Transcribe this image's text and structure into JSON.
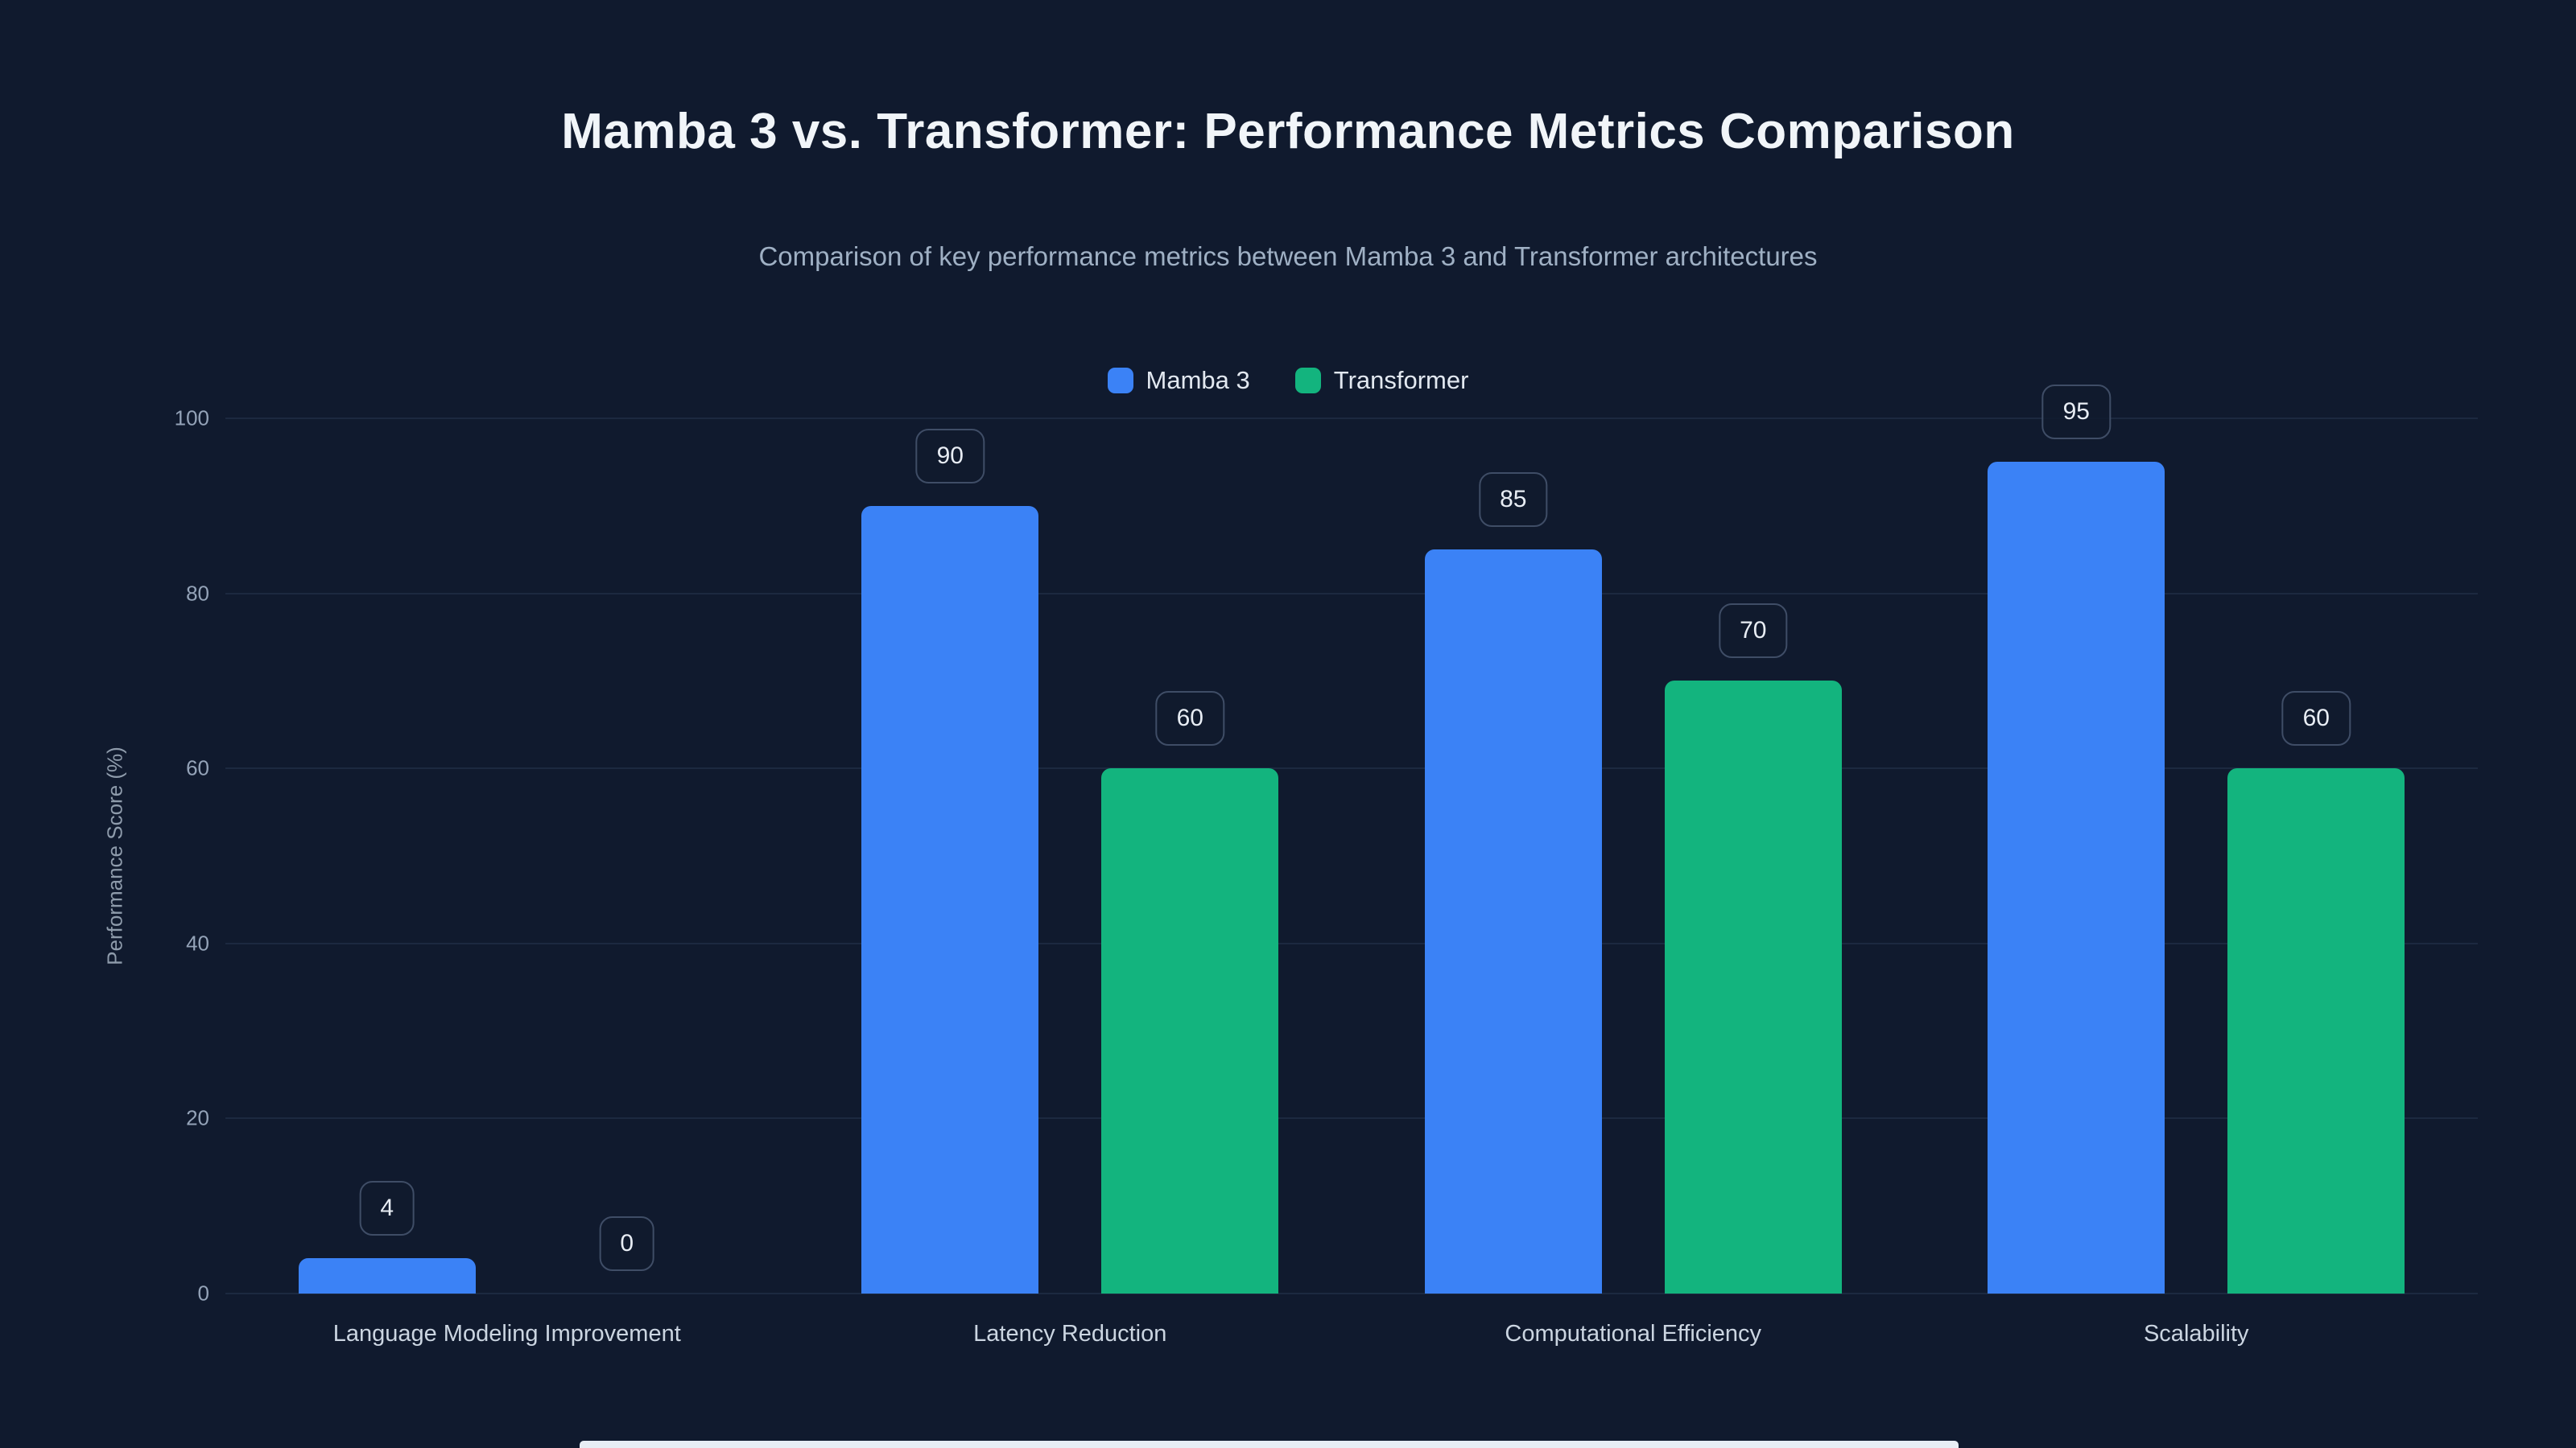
{
  "header": {
    "title": "Mamba 3 vs. Transformer: Performance Metrics Comparison",
    "subtitle": "Comparison of key performance metrics between Mamba 3 and Transformer architectures"
  },
  "chart_data": {
    "type": "bar",
    "title": "Mamba 3 vs. Transformer: Performance Metrics Comparison",
    "subtitle": "Comparison of key performance metrics between Mamba 3 and Transformer architectures",
    "categories": [
      "Language Modeling Improvement",
      "Latency Reduction",
      "Computational Efficiency",
      "Scalability"
    ],
    "series": [
      {
        "name": "Mamba 3",
        "color": "#3b82f6",
        "values": [
          4,
          90,
          85,
          95
        ]
      },
      {
        "name": "Transformer",
        "color": "#13b47e",
        "values": [
          0,
          60,
          70,
          60
        ]
      }
    ],
    "xlabel": "",
    "ylabel": "Performance Score (%)",
    "ylim": [
      0,
      100
    ],
    "yticks": [
      0,
      20,
      40,
      60,
      80,
      100
    ],
    "grid": true,
    "legend_position": "top",
    "value_labels": true
  },
  "colors": {
    "background": "#101a2e",
    "grid": "#1c2940",
    "axis_text": "#94a3b8",
    "title_text": "#f1f5f9",
    "subtitle_text": "#9fb0c4",
    "badge_border": "#3f4d66"
  }
}
